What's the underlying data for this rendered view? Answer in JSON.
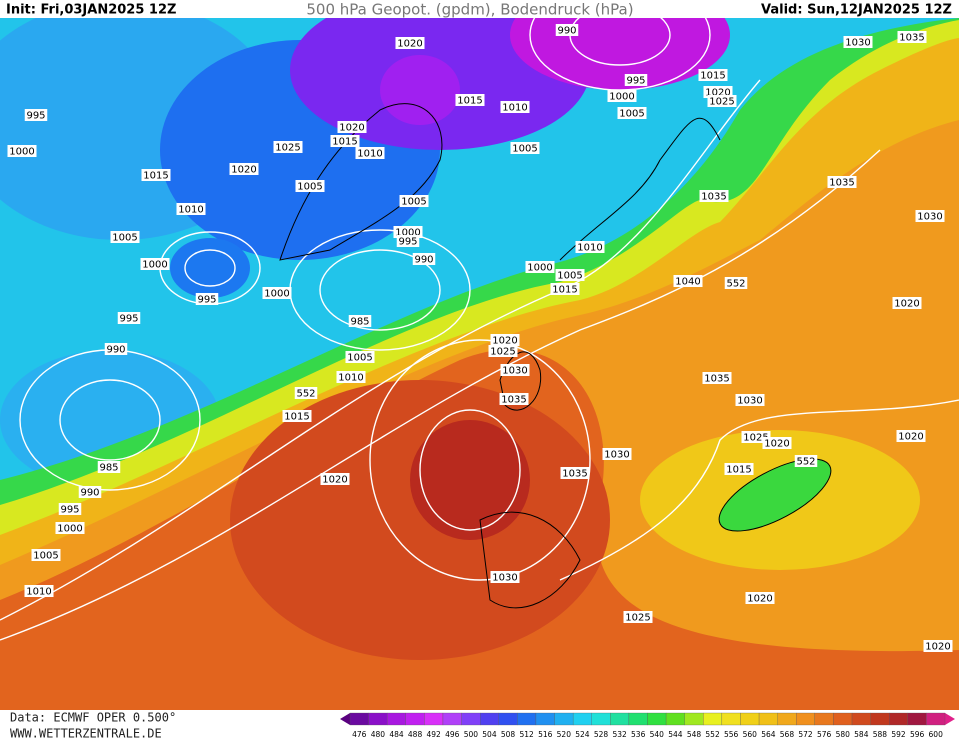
{
  "header": {
    "init": "Init: Fri,03JAN2025 12Z",
    "title": "500 hPa Geopot. (gpdm), Bodendruck (hPa)",
    "valid": "Valid: Sun,12JAN2025 12Z"
  },
  "isobar_labels": [
    1020,
    990,
    1030,
    1035,
    995,
    1015,
    1020,
    1025,
    1000,
    1005,
    1015,
    1010,
    995,
    1020,
    1015,
    1025,
    1010,
    1005,
    1000,
    1015,
    1020,
    1005,
    1035,
    1035,
    1005,
    1010,
    1030,
    1005,
    1000,
    995,
    1010,
    1000,
    990,
    1000,
    1005,
    1015,
    1040,
    552,
    995,
    1000,
    985,
    995,
    1020,
    990,
    1020,
    1025,
    1005,
    1010,
    1030,
    1035,
    552,
    1035,
    1030,
    1015,
    1025,
    1020,
    552,
    1020,
    1030,
    1015,
    985,
    1035,
    1020,
    990,
    995,
    1000,
    1005,
    1030,
    1010,
    1020,
    1025,
    1020
  ],
  "footer": {
    "source": "Data: ECMWF OPER 0.500°",
    "website": "WWW.WETTERZENTRALE.DE"
  },
  "color_scale": {
    "labels": [
      476,
      480,
      484,
      488,
      492,
      496,
      500,
      504,
      508,
      512,
      516,
      520,
      524,
      528,
      532,
      536,
      540,
      544,
      548,
      552,
      556,
      560,
      564,
      568,
      572,
      576,
      580,
      584,
      588,
      592,
      596,
      600
    ]
  }
}
